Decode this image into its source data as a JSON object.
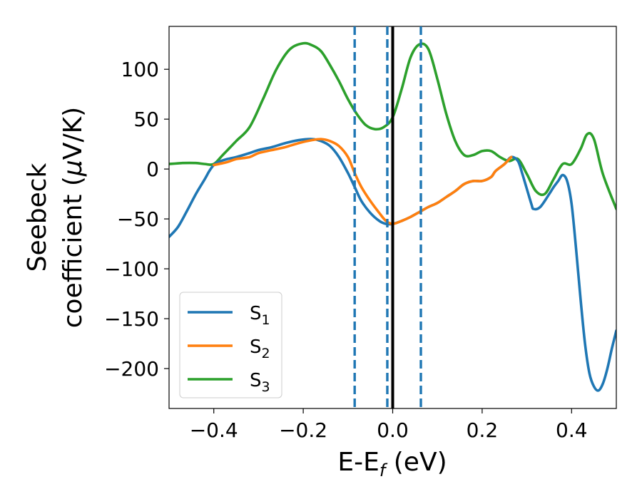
{
  "chart_data": {
    "type": "line",
    "xlabel": {
      "main": "E-E",
      "sub": "f",
      "unit": " (eV)"
    },
    "ylabel": {
      "line1": "Seebeck",
      "line2_pre": "coefficient  (",
      "mu": "μ",
      "line2_post": "V/K)"
    },
    "xlim": [
      -0.5,
      0.5
    ],
    "ylim": [
      -240,
      143
    ],
    "xticks": [
      {
        "value": -0.4,
        "label": "−0.4"
      },
      {
        "value": -0.2,
        "label": "−0.2"
      },
      {
        "value": 0.0,
        "label": "0.0"
      },
      {
        "value": 0.2,
        "label": "0.2"
      },
      {
        "value": 0.4,
        "label": "0.4"
      }
    ],
    "yticks": [
      {
        "value": 100,
        "label": "100"
      },
      {
        "value": 50,
        "label": "50"
      },
      {
        "value": 0,
        "label": "0"
      },
      {
        "value": -50,
        "label": "−50"
      },
      {
        "value": -100,
        "label": "−100"
      },
      {
        "value": -150,
        "label": "−150"
      },
      {
        "value": -200,
        "label": "−200"
      }
    ],
    "legend": {
      "placement": "lower-left",
      "entries": [
        {
          "base": "S",
          "sub": "1",
          "color": "#1f77b4"
        },
        {
          "base": "S",
          "sub": "2",
          "color": "#ff7f0e"
        },
        {
          "base": "S",
          "sub": "3",
          "color": "#2ca02c"
        }
      ]
    },
    "vlines": [
      {
        "x": -0.085,
        "style": "dashed",
        "color": "#1f77b4"
      },
      {
        "x": -0.012,
        "style": "dashed",
        "color": "#1f77b4"
      },
      {
        "x": 0.0,
        "style": "solid",
        "color": "#000000"
      },
      {
        "x": 0.063,
        "style": "dashed",
        "color": "#1f77b4"
      }
    ],
    "series": [
      {
        "id": "S1",
        "color": "#1f77b4",
        "x": [
          -0.5,
          -0.48,
          -0.46,
          -0.44,
          -0.42,
          -0.41,
          -0.4,
          -0.39,
          -0.37,
          -0.35,
          -0.32,
          -0.3,
          -0.27,
          -0.24,
          -0.21,
          -0.18,
          -0.16,
          -0.14,
          -0.12,
          -0.1,
          -0.085,
          -0.07,
          -0.05,
          -0.03,
          -0.015,
          0.0,
          0.02,
          0.04,
          0.06,
          0.08,
          0.1,
          0.12,
          0.14,
          0.16,
          0.18,
          0.2,
          0.22,
          0.23,
          0.25,
          0.265,
          0.28,
          0.29,
          0.31,
          0.315,
          0.33,
          0.35,
          0.36,
          0.37,
          0.38,
          0.39,
          0.4,
          0.41,
          0.42,
          0.43,
          0.44,
          0.45,
          0.46,
          0.47,
          0.48,
          0.49,
          0.5
        ],
        "y": [
          -68,
          -58,
          -42,
          -25,
          -10,
          -2,
          4,
          7,
          10,
          12,
          16,
          19,
          22,
          26,
          29,
          30,
          28,
          23,
          12,
          -4,
          -18,
          -32,
          -44,
          -52,
          -55,
          -55,
          -52,
          -48,
          -43,
          -38,
          -34,
          -28,
          -22,
          -15,
          -12,
          -12,
          -8,
          -2,
          5,
          12,
          8,
          -5,
          -35,
          -40,
          -38,
          -25,
          -18,
          -12,
          -6,
          -12,
          -35,
          -80,
          -130,
          -175,
          -205,
          -218,
          -222,
          -215,
          -200,
          -180,
          -162
        ]
      },
      {
        "id": "S2",
        "color": "#ff7f0e",
        "x": [
          -0.4,
          -0.37,
          -0.35,
          -0.32,
          -0.3,
          -0.27,
          -0.24,
          -0.21,
          -0.18,
          -0.16,
          -0.14,
          -0.12,
          -0.1,
          -0.085,
          -0.07,
          -0.05,
          -0.03,
          -0.015,
          0.0,
          0.02,
          0.04,
          0.06,
          0.08,
          0.1,
          0.12,
          0.14,
          0.16,
          0.18,
          0.2,
          0.22,
          0.23,
          0.25,
          0.265
        ],
        "y": [
          4,
          7,
          10,
          12,
          16,
          19,
          22,
          26,
          29,
          30,
          28,
          23,
          12,
          -4,
          -18,
          -32,
          -44,
          -52,
          -55,
          -52,
          -48,
          -43,
          -38,
          -34,
          -28,
          -22,
          -15,
          -12,
          -12,
          -8,
          -2,
          5,
          12
        ]
      },
      {
        "id": "S3",
        "color": "#2ca02c",
        "x": [
          -0.5,
          -0.47,
          -0.44,
          -0.42,
          -0.4,
          -0.38,
          -0.35,
          -0.32,
          -0.29,
          -0.26,
          -0.23,
          -0.2,
          -0.18,
          -0.16,
          -0.14,
          -0.12,
          -0.1,
          -0.08,
          -0.06,
          -0.04,
          -0.02,
          0.0,
          0.02,
          0.04,
          0.06,
          0.08,
          0.1,
          0.12,
          0.14,
          0.16,
          0.18,
          0.2,
          0.22,
          0.24,
          0.26,
          0.28,
          0.3,
          0.32,
          0.34,
          0.36,
          0.38,
          0.4,
          0.42,
          0.435,
          0.45,
          0.47,
          0.5
        ],
        "y": [
          5,
          6,
          6,
          5,
          5,
          14,
          28,
          42,
          70,
          100,
          120,
          126,
          124,
          118,
          104,
          88,
          70,
          55,
          44,
          40,
          42,
          52,
          80,
          112,
          125,
          120,
          90,
          55,
          28,
          14,
          14,
          18,
          18,
          12,
          8,
          10,
          -5,
          -22,
          -25,
          -10,
          5,
          5,
          20,
          35,
          30,
          -5,
          -40
        ]
      }
    ]
  }
}
